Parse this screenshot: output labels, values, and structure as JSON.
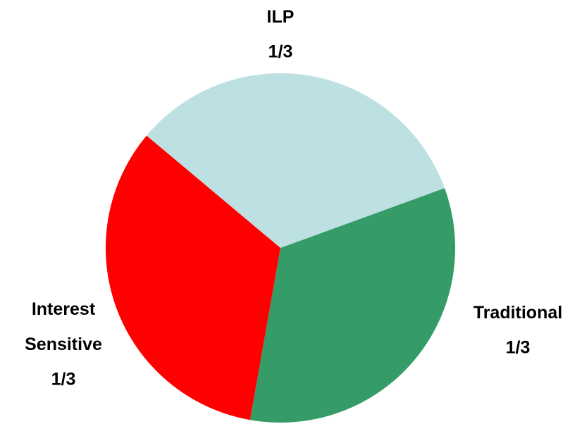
{
  "chart_data": {
    "type": "pie",
    "categories": [
      "ILP",
      "Traditional",
      "Interest Sensitive"
    ],
    "values": [
      0.3333,
      0.3333,
      0.3333
    ],
    "value_labels": [
      "1/3",
      "1/3",
      "1/3"
    ],
    "colors": [
      "#bde0e3",
      "#359c68",
      "#ff0000"
    ]
  }
}
